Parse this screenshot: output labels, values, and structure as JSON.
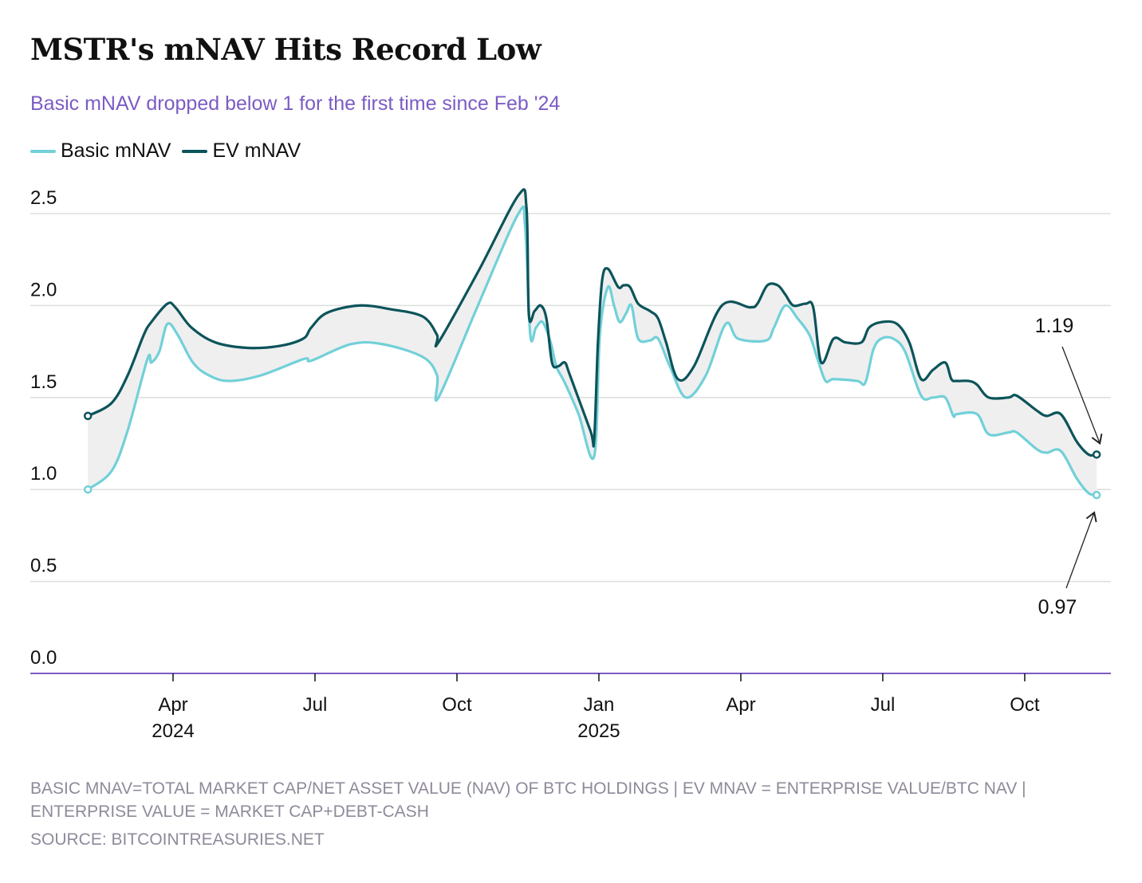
{
  "header": {
    "title": "MSTR's mNAV Hits Record Low",
    "subtitle": "Basic mNAV dropped below 1 for the first time since Feb '24"
  },
  "footer": {
    "notes": "BASIC MNAV=TOTAL MARKET CAP/NET ASSET VALUE (NAV) OF BTC HOLDINGS | EV MNAV = ENTERPRISE VALUE/BTC NAV | ENTERPRISE VALUE = MARKET CAP+DEBT-CASH",
    "source": "SOURCE: BITCOINTREASURIES.NET"
  },
  "chart_data": {
    "type": "line",
    "title": "MSTR's mNAV Hits Record Low",
    "xlabel": "",
    "ylabel": "",
    "x_unit": "months since Jan 1 2024",
    "ylim": [
      0,
      2.5
    ],
    "yticks": [
      {
        "v": 0,
        "label": "0.0"
      },
      {
        "v": 0.5,
        "label": "0.5"
      },
      {
        "v": 1,
        "label": "1.0"
      },
      {
        "v": 1.5,
        "label": "1.5"
      },
      {
        "v": 2,
        "label": "2.0"
      },
      {
        "v": 2.5,
        "label": "2.5"
      }
    ],
    "xticks": [
      {
        "m": 3,
        "label": "Apr",
        "sub": "2024"
      },
      {
        "m": 6,
        "label": "Jul",
        "sub": ""
      },
      {
        "m": 9,
        "label": "Oct",
        "sub": ""
      },
      {
        "m": 12,
        "label": "Jan",
        "sub": "2025"
      },
      {
        "m": 15,
        "label": "Apr",
        "sub": ""
      },
      {
        "m": 18,
        "label": "Jul",
        "sub": ""
      },
      {
        "m": 21,
        "label": "Oct",
        "sub": ""
      }
    ],
    "grid": true,
    "legend_position": "top-left",
    "series": [
      {
        "name": "Basic mNAV",
        "color": "#72d0d8",
        "points": [
          [
            1.2,
            1.0
          ],
          [
            1.7,
            1.1
          ],
          [
            2.04,
            1.32
          ],
          [
            2.46,
            1.71
          ],
          [
            2.54,
            1.69
          ],
          [
            2.71,
            1.75
          ],
          [
            2.88,
            1.9
          ],
          [
            3.1,
            1.84
          ],
          [
            3.42,
            1.69
          ],
          [
            3.76,
            1.62
          ],
          [
            4.18,
            1.59
          ],
          [
            4.85,
            1.62
          ],
          [
            5.77,
            1.71
          ],
          [
            5.92,
            1.7
          ],
          [
            6.76,
            1.79
          ],
          [
            7.43,
            1.79
          ],
          [
            8.28,
            1.72
          ],
          [
            8.58,
            1.62
          ],
          [
            8.61,
            1.5
          ],
          [
            9.46,
            2.01
          ],
          [
            10.3,
            2.5
          ],
          [
            10.44,
            2.43
          ],
          [
            10.55,
            1.84
          ],
          [
            10.67,
            1.88
          ],
          [
            10.81,
            1.91
          ],
          [
            10.98,
            1.8
          ],
          [
            11.1,
            1.67
          ],
          [
            11.28,
            1.58
          ],
          [
            11.57,
            1.41
          ],
          [
            11.9,
            1.18
          ],
          [
            12.02,
            1.84
          ],
          [
            12.19,
            2.1
          ],
          [
            12.32,
            2.0
          ],
          [
            12.44,
            1.91
          ],
          [
            12.58,
            1.96
          ],
          [
            12.69,
            2.0
          ],
          [
            12.83,
            1.82
          ],
          [
            13.08,
            1.81
          ],
          [
            13.25,
            1.82
          ],
          [
            13.5,
            1.67
          ],
          [
            13.84,
            1.5
          ],
          [
            14.26,
            1.62
          ],
          [
            14.68,
            1.9
          ],
          [
            14.94,
            1.82
          ],
          [
            15.53,
            1.81
          ],
          [
            15.7,
            1.88
          ],
          [
            15.94,
            2.0
          ],
          [
            16.2,
            1.93
          ],
          [
            16.45,
            1.84
          ],
          [
            16.62,
            1.71
          ],
          [
            16.79,
            1.59
          ],
          [
            16.96,
            1.6
          ],
          [
            17.46,
            1.59
          ],
          [
            17.63,
            1.58
          ],
          [
            17.8,
            1.76
          ],
          [
            17.97,
            1.82
          ],
          [
            18.22,
            1.82
          ],
          [
            18.47,
            1.75
          ],
          [
            18.81,
            1.51
          ],
          [
            19.06,
            1.5
          ],
          [
            19.32,
            1.5
          ],
          [
            19.49,
            1.4
          ],
          [
            19.57,
            1.41
          ],
          [
            19.99,
            1.41
          ],
          [
            20.24,
            1.3
          ],
          [
            20.66,
            1.31
          ],
          [
            20.83,
            1.31
          ],
          [
            21.25,
            1.22
          ],
          [
            21.46,
            1.2
          ],
          [
            21.76,
            1.21
          ],
          [
            22.1,
            1.06
          ],
          [
            22.35,
            0.98
          ],
          [
            22.52,
            0.97
          ]
        ]
      },
      {
        "name": "EV mNAV",
        "color": "#0c545a",
        "points": [
          [
            1.2,
            1.4
          ],
          [
            1.7,
            1.47
          ],
          [
            2.04,
            1.62
          ],
          [
            2.38,
            1.84
          ],
          [
            2.54,
            1.91
          ],
          [
            2.88,
            2.01
          ],
          [
            3.05,
            1.99
          ],
          [
            3.39,
            1.88
          ],
          [
            3.89,
            1.8
          ],
          [
            4.57,
            1.77
          ],
          [
            5.24,
            1.78
          ],
          [
            5.75,
            1.82
          ],
          [
            5.92,
            1.88
          ],
          [
            6.25,
            1.96
          ],
          [
            6.93,
            2.0
          ],
          [
            7.6,
            1.98
          ],
          [
            8.28,
            1.94
          ],
          [
            8.58,
            1.84
          ],
          [
            8.61,
            1.8
          ],
          [
            9.46,
            2.19
          ],
          [
            10.3,
            2.6
          ],
          [
            10.47,
            2.53
          ],
          [
            10.52,
            1.95
          ],
          [
            10.64,
            1.97
          ],
          [
            10.77,
            2.0
          ],
          [
            10.89,
            1.93
          ],
          [
            11.01,
            1.69
          ],
          [
            11.14,
            1.67
          ],
          [
            11.28,
            1.69
          ],
          [
            11.39,
            1.62
          ],
          [
            11.82,
            1.32
          ],
          [
            11.9,
            1.27
          ],
          [
            11.98,
            1.8
          ],
          [
            12.07,
            2.14
          ],
          [
            12.19,
            2.2
          ],
          [
            12.41,
            2.1
          ],
          [
            12.52,
            2.11
          ],
          [
            12.66,
            2.1
          ],
          [
            12.83,
            2.01
          ],
          [
            13.08,
            1.97
          ],
          [
            13.25,
            1.93
          ],
          [
            13.42,
            1.8
          ],
          [
            13.67,
            1.6
          ],
          [
            14.01,
            1.67
          ],
          [
            14.6,
            2.0
          ],
          [
            15.19,
            1.99
          ],
          [
            15.35,
            2.01
          ],
          [
            15.56,
            2.11
          ],
          [
            15.78,
            2.11
          ],
          [
            15.94,
            2.06
          ],
          [
            16.11,
            2.0
          ],
          [
            16.37,
            2.01
          ],
          [
            16.53,
            1.99
          ],
          [
            16.7,
            1.69
          ],
          [
            16.96,
            1.82
          ],
          [
            17.21,
            1.8
          ],
          [
            17.55,
            1.8
          ],
          [
            17.71,
            1.88
          ],
          [
            17.97,
            1.91
          ],
          [
            18.3,
            1.9
          ],
          [
            18.56,
            1.8
          ],
          [
            18.81,
            1.6
          ],
          [
            19.06,
            1.65
          ],
          [
            19.32,
            1.69
          ],
          [
            19.45,
            1.6
          ],
          [
            19.57,
            1.59
          ],
          [
            19.82,
            1.59
          ],
          [
            19.99,
            1.57
          ],
          [
            20.24,
            1.5
          ],
          [
            20.66,
            1.5
          ],
          [
            20.83,
            1.51
          ],
          [
            21.25,
            1.43
          ],
          [
            21.46,
            1.4
          ],
          [
            21.76,
            1.41
          ],
          [
            22.1,
            1.26
          ],
          [
            22.35,
            1.19
          ],
          [
            22.52,
            1.19
          ]
        ]
      }
    ],
    "annotations": [
      {
        "label": "1.19",
        "series": "EV mNAV"
      },
      {
        "label": "0.97",
        "series": "Basic mNAV"
      }
    ]
  }
}
